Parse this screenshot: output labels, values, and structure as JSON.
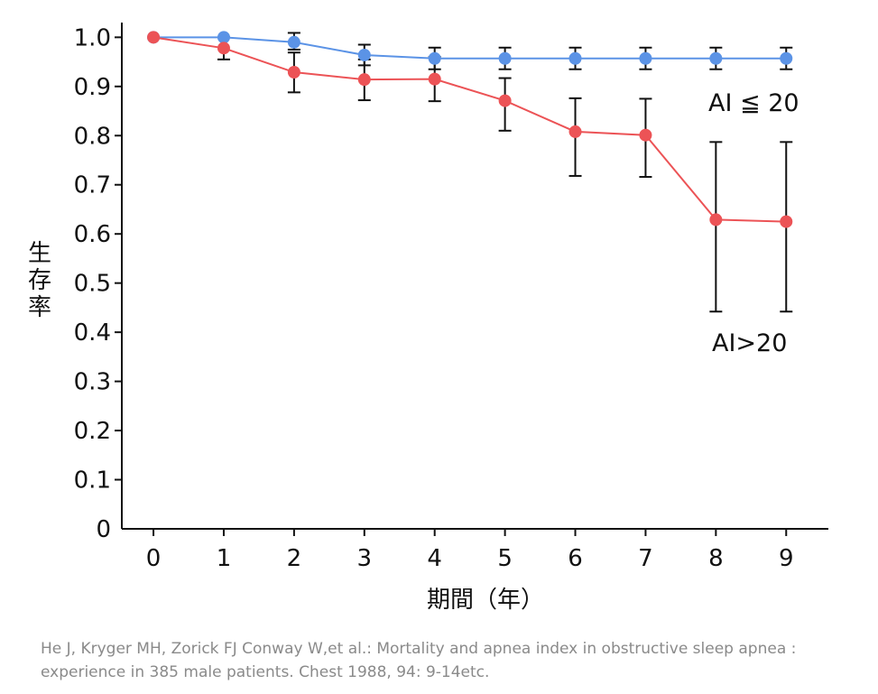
{
  "chart_data": {
    "type": "line",
    "title": "",
    "xlabel": "期間（年）",
    "ylabel": "生存率",
    "x": [
      0,
      1,
      2,
      3,
      4,
      5,
      6,
      7,
      8,
      9
    ],
    "x_ticks": [
      "0",
      "1",
      "2",
      "3",
      "4",
      "5",
      "6",
      "7",
      "8",
      "9"
    ],
    "y_ticks": [
      "0",
      "0.1",
      "0.2",
      "0.3",
      "0.4",
      "0.5",
      "0.6",
      "0.7",
      "0.8",
      "0.9",
      "1.0"
    ],
    "xlim": [
      -0.45,
      9.6
    ],
    "ylim": [
      0,
      1.03
    ],
    "grid": false,
    "series": [
      {
        "name": "AI ≦ 20",
        "color": "#5b93e6",
        "values": [
          1.0,
          1.0,
          0.99,
          0.964,
          0.957,
          0.957,
          0.957,
          0.957,
          0.957,
          0.957
        ],
        "error_low": [
          null,
          null,
          0.975,
          0.943,
          0.935,
          0.935,
          0.935,
          0.935,
          0.935,
          0.935
        ],
        "error_high": [
          null,
          null,
          1.009,
          0.985,
          0.979,
          0.979,
          0.979,
          0.979,
          0.979,
          0.979
        ]
      },
      {
        "name": "AI>20",
        "color": "#ec5356",
        "values": [
          1.0,
          0.978,
          0.929,
          0.914,
          0.915,
          0.871,
          0.808,
          0.801,
          0.629,
          0.625
        ],
        "error_low": [
          null,
          0.955,
          0.888,
          0.872,
          0.87,
          0.81,
          0.718,
          0.716,
          0.442,
          0.442
        ],
        "error_high": [
          null,
          1.0,
          0.969,
          0.955,
          0.96,
          0.917,
          0.876,
          0.875,
          0.787,
          0.787
        ]
      }
    ],
    "annotations": [
      "AI ≦ 20",
      "AI>20"
    ]
  },
  "caption": {
    "line1": "He J, Kryger MH, Zorick FJ Conway W,et al.: Mortality and apnea index in obstructive sleep apnea :",
    "line2": "experience in 385 male patients. Chest 1988, 94: 9-14etc."
  }
}
